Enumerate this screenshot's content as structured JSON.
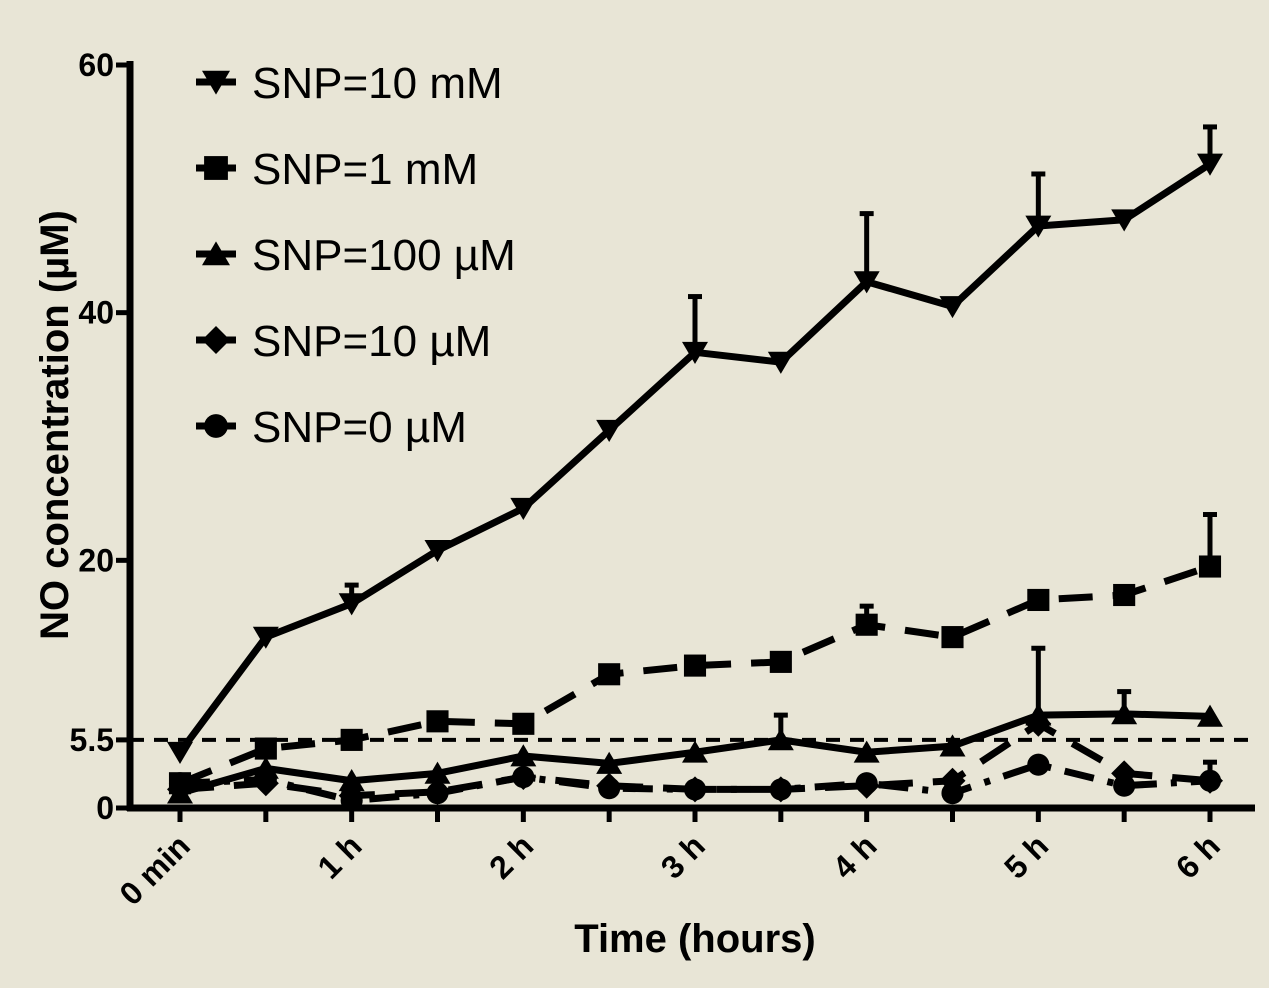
{
  "chart_data": {
    "type": "line",
    "title": "",
    "xlabel": "Time (hours)",
    "ylabel": "NO concentration (µM)",
    "ylim": [
      0,
      60
    ],
    "xlim": [
      0,
      6
    ],
    "y_ticks": [
      0,
      20,
      40,
      60
    ],
    "y_extra_ticks": [
      5.5
    ],
    "x_ticks": [
      0,
      1,
      2,
      3,
      4,
      5,
      6
    ],
    "x_tick_labels": [
      "0 min",
      "1 h",
      "2 h",
      "3 h",
      "4 h",
      "5 h",
      "6 h"
    ],
    "x": [
      0,
      0.5,
      1,
      1.5,
      2,
      2.5,
      3,
      3.5,
      4,
      4.5,
      5,
      5.5,
      6
    ],
    "reference_line": {
      "y": 5.5,
      "style": "dashed"
    },
    "legend_position": "top-left",
    "grid": false,
    "series": [
      {
        "name": "SNP=10 mM",
        "marker": "triangle-down",
        "line": "solid",
        "values": [
          4.5,
          13.8,
          16.5,
          20.8,
          24.2,
          30.5,
          36.8,
          36.0,
          42.5,
          40.5,
          47.0,
          47.5,
          52.0
        ],
        "errors": [
          0,
          0,
          1.5,
          0,
          0,
          0,
          4.5,
          0,
          5.5,
          0,
          4.2,
          0,
          3.0
        ]
      },
      {
        "name": "SNP=1 mM",
        "marker": "square",
        "line": "dashed",
        "values": [
          2.0,
          4.8,
          5.5,
          7.0,
          6.8,
          10.8,
          11.5,
          11.8,
          14.8,
          13.8,
          16.8,
          17.2,
          19.5
        ],
        "errors": [
          0,
          0,
          0,
          0,
          0,
          0,
          0,
          0,
          1.5,
          0,
          0,
          0,
          4.2
        ]
      },
      {
        "name": "SNP=100 µM",
        "marker": "triangle-up",
        "line": "solid",
        "values": [
          1.2,
          3.2,
          2.2,
          2.8,
          4.2,
          3.6,
          4.5,
          5.5,
          4.5,
          5.0,
          7.5,
          7.6,
          7.4
        ],
        "errors": [
          0,
          0,
          0,
          0,
          0,
          0,
          0,
          2.0,
          0,
          0,
          5.4,
          1.8,
          0
        ]
      },
      {
        "name": "SNP=10 µM",
        "marker": "diamond",
        "line": "dashed",
        "values": [
          1.5,
          2.0,
          1.0,
          1.3,
          2.5,
          1.8,
          1.5,
          1.5,
          1.8,
          2.2,
          6.8,
          2.8,
          2.2
        ],
        "errors": [
          0,
          0,
          0,
          0,
          0,
          0,
          0,
          0,
          0,
          0,
          0,
          0,
          0
        ]
      },
      {
        "name": "SNP=0 µM",
        "marker": "circle",
        "line": "dashdot",
        "values": [
          2.0,
          2.3,
          0.6,
          1.2,
          2.5,
          1.6,
          1.5,
          1.5,
          2.0,
          1.2,
          3.5,
          1.8,
          2.2
        ],
        "errors": [
          0,
          0,
          0,
          0,
          0,
          0,
          0,
          0,
          0,
          0,
          0,
          0,
          1.5
        ]
      }
    ]
  }
}
